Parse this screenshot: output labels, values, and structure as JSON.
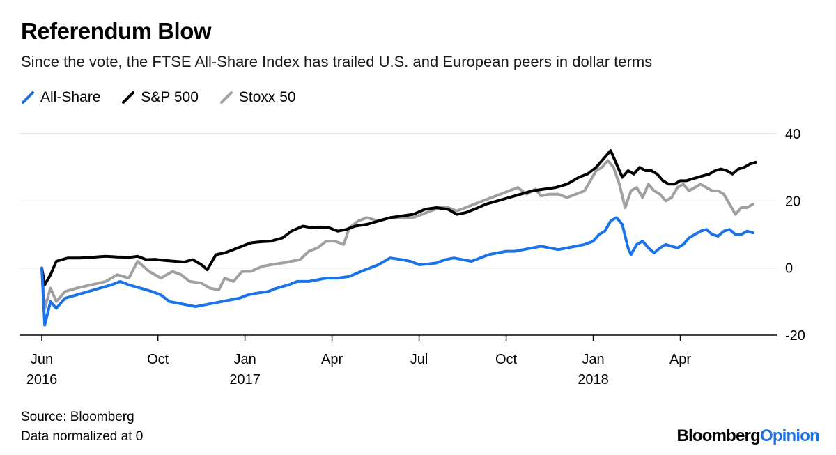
{
  "title": "Referendum Blow",
  "subtitle": "Since the vote, the FTSE All-Share Index has trailed U.S. and European peers in dollar terms",
  "legend": [
    {
      "label": "All-Share",
      "color": "#1a73e8"
    },
    {
      "label": "S&P 500",
      "color": "#000000"
    },
    {
      "label": "Stoxx 50",
      "color": "#a0a0a0"
    }
  ],
  "footer": {
    "source": "Source: Bloomberg",
    "note": "Data normalized at 0"
  },
  "brand": {
    "part1": "Bloomberg",
    "part2": "Opinion",
    "accent": "#1f6fe0"
  },
  "chart_data": {
    "type": "line",
    "title": "Referendum Blow",
    "xlabel": "",
    "ylabel": "",
    "ylim": [
      -20,
      40
    ],
    "yticks": [
      40,
      20,
      0,
      -20
    ],
    "xlim": [
      0,
      24.7
    ],
    "x_unit": "months since June 2016",
    "xticks": [
      {
        "x": 0,
        "label": "Jun",
        "sub": "2016"
      },
      {
        "x": 4,
        "label": "Oct",
        "sub": ""
      },
      {
        "x": 7,
        "label": "Jan",
        "sub": "2017"
      },
      {
        "x": 10,
        "label": "Apr",
        "sub": ""
      },
      {
        "x": 13,
        "label": "Jul",
        "sub": ""
      },
      {
        "x": 16,
        "label": "Oct",
        "sub": ""
      },
      {
        "x": 19,
        "label": "Jan",
        "sub": "2018"
      },
      {
        "x": 22,
        "label": "Apr",
        "sub": ""
      }
    ],
    "grid": true,
    "series": [
      {
        "name": "Stoxx 50",
        "color": "#a0a0a0",
        "points": [
          [
            0,
            0
          ],
          [
            0.1,
            -12
          ],
          [
            0.3,
            -6
          ],
          [
            0.5,
            -10
          ],
          [
            0.8,
            -7
          ],
          [
            1.2,
            -6
          ],
          [
            1.7,
            -5
          ],
          [
            2.2,
            -4
          ],
          [
            2.6,
            -2
          ],
          [
            3,
            -3
          ],
          [
            3.3,
            2
          ],
          [
            3.7,
            -1
          ],
          [
            4.1,
            -3
          ],
          [
            4.5,
            -1
          ],
          [
            4.8,
            -2
          ],
          [
            5.1,
            -4
          ],
          [
            5.5,
            -4.5
          ],
          [
            5.8,
            -6
          ],
          [
            6.1,
            -6.5
          ],
          [
            6.3,
            -3
          ],
          [
            6.6,
            -4
          ],
          [
            6.9,
            -1
          ],
          [
            7.2,
            -1
          ],
          [
            7.6,
            0.5
          ],
          [
            7.9,
            1
          ],
          [
            8.3,
            1.5
          ],
          [
            8.6,
            2
          ],
          [
            8.9,
            2.5
          ],
          [
            9.2,
            5
          ],
          [
            9.5,
            6
          ],
          [
            9.8,
            8
          ],
          [
            10.1,
            8
          ],
          [
            10.4,
            7
          ],
          [
            10.6,
            12
          ],
          [
            10.9,
            14
          ],
          [
            11.2,
            15
          ],
          [
            11.6,
            14
          ],
          [
            12,
            15
          ],
          [
            12.4,
            15
          ],
          [
            12.8,
            15
          ],
          [
            13.1,
            16
          ],
          [
            13.4,
            17
          ],
          [
            13.7,
            18
          ],
          [
            14,
            18
          ],
          [
            14.3,
            17
          ],
          [
            14.6,
            18
          ],
          [
            14.9,
            19
          ],
          [
            15.2,
            20
          ],
          [
            15.5,
            21
          ],
          [
            15.8,
            22
          ],
          [
            16.1,
            23
          ],
          [
            16.4,
            24
          ],
          [
            16.7,
            22
          ],
          [
            17,
            23.5
          ],
          [
            17.2,
            21.5
          ],
          [
            17.5,
            22
          ],
          [
            17.8,
            22
          ],
          [
            18.1,
            21
          ],
          [
            18.4,
            22
          ],
          [
            18.7,
            23
          ],
          [
            18.9,
            26
          ],
          [
            19.1,
            29
          ],
          [
            19.3,
            30
          ],
          [
            19.5,
            32
          ],
          [
            19.7,
            30
          ],
          [
            19.9,
            25
          ],
          [
            20.1,
            18
          ],
          [
            20.3,
            23
          ],
          [
            20.5,
            24
          ],
          [
            20.7,
            21
          ],
          [
            20.9,
            25
          ],
          [
            21.1,
            23
          ],
          [
            21.3,
            22
          ],
          [
            21.5,
            20
          ],
          [
            21.7,
            21
          ],
          [
            21.9,
            24
          ],
          [
            22.1,
            25
          ],
          [
            22.3,
            23
          ],
          [
            22.5,
            24
          ],
          [
            22.7,
            25
          ],
          [
            22.9,
            24
          ],
          [
            23.1,
            23
          ],
          [
            23.3,
            23
          ],
          [
            23.5,
            22
          ],
          [
            23.7,
            19
          ],
          [
            23.9,
            16
          ],
          [
            24.1,
            18
          ],
          [
            24.3,
            18
          ],
          [
            24.5,
            19
          ]
        ]
      },
      {
        "name": "S&P 500",
        "color": "#000000",
        "points": [
          [
            0,
            0
          ],
          [
            0.1,
            -5
          ],
          [
            0.3,
            -2
          ],
          [
            0.5,
            2
          ],
          [
            0.9,
            3
          ],
          [
            1.3,
            3
          ],
          [
            1.7,
            3.2
          ],
          [
            2.2,
            3.5
          ],
          [
            2.6,
            3.3
          ],
          [
            3,
            3.2
          ],
          [
            3.3,
            3.5
          ],
          [
            3.6,
            2.5
          ],
          [
            3.9,
            2.6
          ],
          [
            4.2,
            2.3
          ],
          [
            4.6,
            2
          ],
          [
            4.9,
            1.8
          ],
          [
            5.2,
            2.5
          ],
          [
            5.5,
            1
          ],
          [
            5.7,
            -0.5
          ],
          [
            6,
            4
          ],
          [
            6.3,
            4.5
          ],
          [
            6.6,
            5.5
          ],
          [
            6.9,
            6.5
          ],
          [
            7.2,
            7.5
          ],
          [
            7.5,
            7.8
          ],
          [
            7.9,
            8
          ],
          [
            8.3,
            9
          ],
          [
            8.6,
            11
          ],
          [
            9,
            12.5
          ],
          [
            9.3,
            12
          ],
          [
            9.6,
            12.2
          ],
          [
            9.9,
            12
          ],
          [
            10.2,
            11
          ],
          [
            10.5,
            11.5
          ],
          [
            10.8,
            12.5
          ],
          [
            11.2,
            13
          ],
          [
            11.6,
            14
          ],
          [
            12,
            15
          ],
          [
            12.4,
            15.5
          ],
          [
            12.8,
            16
          ],
          [
            13.2,
            17.5
          ],
          [
            13.6,
            18
          ],
          [
            14,
            17.5
          ],
          [
            14.3,
            16
          ],
          [
            14.6,
            16.5
          ],
          [
            14.9,
            17.5
          ],
          [
            15.3,
            19
          ],
          [
            15.7,
            20
          ],
          [
            16.1,
            21
          ],
          [
            16.5,
            22
          ],
          [
            16.9,
            23
          ],
          [
            17.3,
            23.5
          ],
          [
            17.7,
            24
          ],
          [
            18.1,
            25
          ],
          [
            18.5,
            27
          ],
          [
            18.8,
            28
          ],
          [
            19.1,
            30
          ],
          [
            19.4,
            33
          ],
          [
            19.6,
            35
          ],
          [
            19.8,
            31
          ],
          [
            20,
            27
          ],
          [
            20.2,
            29
          ],
          [
            20.4,
            28
          ],
          [
            20.6,
            30
          ],
          [
            20.8,
            29
          ],
          [
            21,
            29
          ],
          [
            21.2,
            28
          ],
          [
            21.4,
            26
          ],
          [
            21.6,
            25
          ],
          [
            21.8,
            25
          ],
          [
            22,
            26
          ],
          [
            22.2,
            26
          ],
          [
            22.4,
            26.5
          ],
          [
            22.6,
            27
          ],
          [
            22.8,
            27.5
          ],
          [
            23,
            28
          ],
          [
            23.2,
            29
          ],
          [
            23.4,
            29.5
          ],
          [
            23.6,
            29
          ],
          [
            23.8,
            28
          ],
          [
            24,
            29.5
          ],
          [
            24.2,
            30
          ],
          [
            24.4,
            31
          ],
          [
            24.6,
            31.5
          ]
        ]
      },
      {
        "name": "All-Share",
        "color": "#1a73e8",
        "points": [
          [
            0,
            0
          ],
          [
            0.1,
            -17
          ],
          [
            0.3,
            -10
          ],
          [
            0.5,
            -12
          ],
          [
            0.8,
            -9
          ],
          [
            1.2,
            -8
          ],
          [
            1.6,
            -7
          ],
          [
            2,
            -6
          ],
          [
            2.4,
            -5
          ],
          [
            2.7,
            -4
          ],
          [
            3,
            -5
          ],
          [
            3.4,
            -6
          ],
          [
            3.8,
            -7
          ],
          [
            4.1,
            -8
          ],
          [
            4.4,
            -10
          ],
          [
            4.7,
            -10.5
          ],
          [
            5,
            -11
          ],
          [
            5.3,
            -11.5
          ],
          [
            5.6,
            -11
          ],
          [
            5.9,
            -10.5
          ],
          [
            6.2,
            -10
          ],
          [
            6.5,
            -9.5
          ],
          [
            6.8,
            -9
          ],
          [
            7.1,
            -8
          ],
          [
            7.4,
            -7.5
          ],
          [
            7.8,
            -7
          ],
          [
            8.1,
            -6
          ],
          [
            8.5,
            -5
          ],
          [
            8.8,
            -4
          ],
          [
            9.2,
            -4
          ],
          [
            9.5,
            -3.5
          ],
          [
            9.8,
            -3
          ],
          [
            10.2,
            -3
          ],
          [
            10.6,
            -2.5
          ],
          [
            11,
            -1
          ],
          [
            11.3,
            0
          ],
          [
            11.6,
            1
          ],
          [
            12,
            3
          ],
          [
            12.4,
            2.5
          ],
          [
            12.7,
            2
          ],
          [
            13,
            1
          ],
          [
            13.3,
            1.2
          ],
          [
            13.6,
            1.5
          ],
          [
            13.9,
            2.5
          ],
          [
            14.2,
            3
          ],
          [
            14.5,
            2.5
          ],
          [
            14.8,
            2
          ],
          [
            15.1,
            3
          ],
          [
            15.4,
            4
          ],
          [
            15.7,
            4.5
          ],
          [
            16,
            5
          ],
          [
            16.3,
            5
          ],
          [
            16.6,
            5.5
          ],
          [
            16.9,
            6
          ],
          [
            17.2,
            6.5
          ],
          [
            17.5,
            6
          ],
          [
            17.8,
            5.5
          ],
          [
            18.1,
            6
          ],
          [
            18.4,
            6.5
          ],
          [
            18.7,
            7
          ],
          [
            19,
            8
          ],
          [
            19.2,
            10
          ],
          [
            19.4,
            11
          ],
          [
            19.6,
            14
          ],
          [
            19.8,
            15
          ],
          [
            20,
            13
          ],
          [
            20.2,
            6
          ],
          [
            20.3,
            4
          ],
          [
            20.5,
            7
          ],
          [
            20.7,
            8
          ],
          [
            20.9,
            6
          ],
          [
            21.1,
            4.5
          ],
          [
            21.3,
            6
          ],
          [
            21.5,
            7
          ],
          [
            21.7,
            6.5
          ],
          [
            21.9,
            6
          ],
          [
            22.1,
            7
          ],
          [
            22.3,
            9
          ],
          [
            22.5,
            10
          ],
          [
            22.7,
            11
          ],
          [
            22.9,
            11.5
          ],
          [
            23.1,
            10
          ],
          [
            23.3,
            9.5
          ],
          [
            23.5,
            11
          ],
          [
            23.7,
            11.5
          ],
          [
            23.9,
            10
          ],
          [
            24.1,
            10
          ],
          [
            24.3,
            11
          ],
          [
            24.5,
            10.5
          ]
        ]
      }
    ]
  }
}
